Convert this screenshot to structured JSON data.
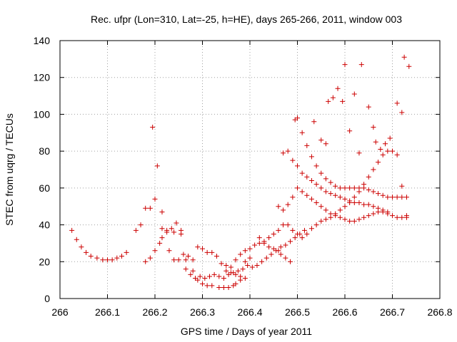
{
  "chart_data": {
    "type": "scatter",
    "title": "Rec. ufpr (Lon=310, Lat=-25, h=HE), days 265-266, 2011, window 003",
    "xlabel": "GPS time / Days of year 2011",
    "ylabel": "STEC from uqrg / TECUs",
    "xlim": [
      266,
      266.8
    ],
    "ylim": [
      0,
      140
    ],
    "xticks": [
      "266",
      "266.1",
      "266.2",
      "266.3",
      "266.4",
      "266.5",
      "266.6",
      "266.7",
      "266.8"
    ],
    "yticks": [
      "0",
      "20",
      "40",
      "60",
      "80",
      "100",
      "120",
      "140"
    ],
    "grid": true,
    "marker": "+",
    "color": "#cc0000",
    "series": [
      {
        "points": [
          [
            266.025,
            37
          ],
          [
            266.035,
            32
          ],
          [
            266.045,
            28
          ],
          [
            266.055,
            25
          ],
          [
            266.065,
            23
          ],
          [
            266.078,
            22
          ],
          [
            266.09,
            21
          ],
          [
            266.1,
            21
          ],
          [
            266.11,
            21
          ],
          [
            266.12,
            22
          ],
          [
            266.13,
            23
          ],
          [
            266.14,
            25
          ],
          [
            266.16,
            37
          ],
          [
            266.17,
            40
          ],
          [
            266.18,
            49
          ],
          [
            266.19,
            49
          ],
          [
            266.2,
            54
          ],
          [
            266.215,
            38
          ],
          [
            266.225,
            37
          ],
          [
            266.24,
            36
          ],
          [
            266.255,
            35
          ],
          [
            266.265,
            21
          ],
          [
            266.28,
            15
          ],
          [
            266.29,
            10
          ],
          [
            266.3,
            8
          ],
          [
            266.31,
            7
          ],
          [
            266.32,
            7
          ],
          [
            266.335,
            6
          ],
          [
            266.345,
            6
          ],
          [
            266.355,
            6
          ],
          [
            266.365,
            7
          ],
          [
            266.37,
            8
          ],
          [
            266.38,
            10
          ],
          [
            266.39,
            11
          ],
          [
            266.18,
            20
          ],
          [
            266.19,
            22
          ],
          [
            266.2,
            26
          ],
          [
            266.21,
            30
          ],
          [
            266.215,
            33
          ],
          [
            266.225,
            36
          ],
          [
            266.235,
            38
          ],
          [
            266.245,
            41
          ],
          [
            266.255,
            37
          ],
          [
            266.195,
            93
          ],
          [
            266.205,
            72
          ],
          [
            266.215,
            47
          ],
          [
            266.23,
            26
          ],
          [
            266.24,
            21
          ],
          [
            266.25,
            21
          ],
          [
            266.265,
            16
          ],
          [
            266.275,
            13
          ],
          [
            266.285,
            11
          ],
          [
            266.295,
            12
          ],
          [
            266.305,
            11
          ],
          [
            266.315,
            12
          ],
          [
            266.325,
            13
          ],
          [
            266.335,
            12
          ],
          [
            266.345,
            11
          ],
          [
            266.355,
            13
          ],
          [
            266.365,
            14
          ],
          [
            266.375,
            15
          ],
          [
            266.385,
            16
          ],
          [
            266.395,
            18
          ],
          [
            266.26,
            24
          ],
          [
            266.27,
            23
          ],
          [
            266.28,
            21
          ],
          [
            266.29,
            28
          ],
          [
            266.3,
            27
          ],
          [
            266.31,
            25
          ],
          [
            266.32,
            25
          ],
          [
            266.33,
            23
          ],
          [
            266.34,
            19
          ],
          [
            266.35,
            18
          ],
          [
            266.36,
            17
          ],
          [
            266.37,
            21
          ],
          [
            266.38,
            24
          ],
          [
            266.39,
            26
          ],
          [
            266.4,
            27
          ],
          [
            266.41,
            29
          ],
          [
            266.42,
            30
          ],
          [
            266.43,
            31
          ],
          [
            266.44,
            33
          ],
          [
            266.45,
            35
          ],
          [
            266.46,
            37
          ],
          [
            266.47,
            40
          ],
          [
            266.35,
            15
          ],
          [
            266.36,
            14
          ],
          [
            266.37,
            13
          ],
          [
            266.38,
            12
          ],
          [
            266.39,
            20
          ],
          [
            266.4,
            22
          ],
          [
            266.405,
            17
          ],
          [
            266.415,
            18
          ],
          [
            266.425,
            20
          ],
          [
            266.435,
            22
          ],
          [
            266.445,
            24
          ],
          [
            266.455,
            26
          ],
          [
            266.465,
            28
          ],
          [
            266.475,
            29
          ],
          [
            266.485,
            31
          ],
          [
            266.495,
            33
          ],
          [
            266.505,
            35
          ],
          [
            266.515,
            37
          ],
          [
            266.42,
            33
          ],
          [
            266.43,
            30
          ],
          [
            266.44,
            28
          ],
          [
            266.45,
            27
          ],
          [
            266.46,
            26
          ],
          [
            266.465,
            24
          ],
          [
            266.475,
            22
          ],
          [
            266.485,
            20
          ],
          [
            266.46,
            50
          ],
          [
            266.47,
            48
          ],
          [
            266.48,
            51
          ],
          [
            266.49,
            55
          ],
          [
            266.5,
            60
          ],
          [
            266.51,
            58
          ],
          [
            266.52,
            56
          ],
          [
            266.53,
            54
          ],
          [
            266.54,
            52
          ],
          [
            266.55,
            50
          ],
          [
            266.56,
            48
          ],
          [
            266.57,
            46
          ],
          [
            266.58,
            45
          ],
          [
            266.59,
            44
          ],
          [
            266.6,
            43
          ],
          [
            266.61,
            42
          ],
          [
            266.62,
            42
          ],
          [
            266.63,
            43
          ],
          [
            266.64,
            44
          ],
          [
            266.65,
            45
          ],
          [
            266.66,
            46
          ],
          [
            266.67,
            47
          ],
          [
            266.68,
            47
          ],
          [
            266.69,
            46
          ],
          [
            266.7,
            45
          ],
          [
            266.71,
            44
          ],
          [
            266.72,
            44
          ],
          [
            266.73,
            44
          ],
          [
            266.47,
            79
          ],
          [
            266.48,
            80
          ],
          [
            266.49,
            75
          ],
          [
            266.5,
            72
          ],
          [
            266.51,
            68
          ],
          [
            266.52,
            66
          ],
          [
            266.53,
            64
          ],
          [
            266.54,
            62
          ],
          [
            266.55,
            60
          ],
          [
            266.56,
            58
          ],
          [
            266.57,
            57
          ],
          [
            266.58,
            56
          ],
          [
            266.59,
            55
          ],
          [
            266.6,
            54
          ],
          [
            266.61,
            53
          ],
          [
            266.62,
            52
          ],
          [
            266.63,
            52
          ],
          [
            266.64,
            51
          ],
          [
            266.65,
            51
          ],
          [
            266.66,
            50
          ],
          [
            266.67,
            49
          ],
          [
            266.68,
            48
          ],
          [
            266.69,
            47
          ],
          [
            266.495,
            97
          ],
          [
            266.5,
            98
          ],
          [
            266.51,
            90
          ],
          [
            266.52,
            83
          ],
          [
            266.53,
            77
          ],
          [
            266.54,
            72
          ],
          [
            266.55,
            68
          ],
          [
            266.56,
            65
          ],
          [
            266.57,
            63
          ],
          [
            266.58,
            61
          ],
          [
            266.59,
            60
          ],
          [
            266.6,
            60
          ],
          [
            266.61,
            60
          ],
          [
            266.62,
            60
          ],
          [
            266.63,
            60
          ],
          [
            266.64,
            60
          ],
          [
            266.65,
            59
          ],
          [
            266.66,
            58
          ],
          [
            266.67,
            57
          ],
          [
            266.68,
            56
          ],
          [
            266.69,
            55
          ],
          [
            266.7,
            55
          ],
          [
            266.71,
            55
          ],
          [
            266.72,
            55
          ],
          [
            266.73,
            55
          ],
          [
            266.535,
            96
          ],
          [
            266.55,
            86
          ],
          [
            266.56,
            84
          ],
          [
            266.565,
            107
          ],
          [
            266.575,
            109
          ],
          [
            266.585,
            114
          ],
          [
            266.595,
            107
          ],
          [
            266.6,
            127
          ],
          [
            266.61,
            91
          ],
          [
            266.62,
            111
          ],
          [
            266.63,
            79
          ],
          [
            266.635,
            127
          ],
          [
            266.65,
            104
          ],
          [
            266.66,
            93
          ],
          [
            266.665,
            85
          ],
          [
            266.675,
            81
          ],
          [
            266.685,
            84
          ],
          [
            266.695,
            87
          ],
          [
            266.71,
            106
          ],
          [
            266.72,
            101
          ],
          [
            266.725,
            131
          ],
          [
            266.735,
            126
          ],
          [
            266.48,
            40
          ],
          [
            266.49,
            37
          ],
          [
            266.5,
            35
          ],
          [
            266.51,
            33
          ],
          [
            266.52,
            35
          ],
          [
            266.53,
            38
          ],
          [
            266.54,
            40
          ],
          [
            266.55,
            42
          ],
          [
            266.56,
            43
          ],
          [
            266.57,
            44
          ],
          [
            266.58,
            46
          ],
          [
            266.59,
            48
          ],
          [
            266.6,
            50
          ],
          [
            266.61,
            52
          ],
          [
            266.62,
            55
          ],
          [
            266.63,
            58
          ],
          [
            266.64,
            62
          ],
          [
            266.65,
            66
          ],
          [
            266.66,
            70
          ],
          [
            266.67,
            74
          ],
          [
            266.68,
            78
          ],
          [
            266.69,
            80
          ],
          [
            266.7,
            80
          ],
          [
            266.71,
            78
          ],
          [
            266.72,
            61
          ],
          [
            266.73,
            45
          ]
        ]
      }
    ]
  }
}
